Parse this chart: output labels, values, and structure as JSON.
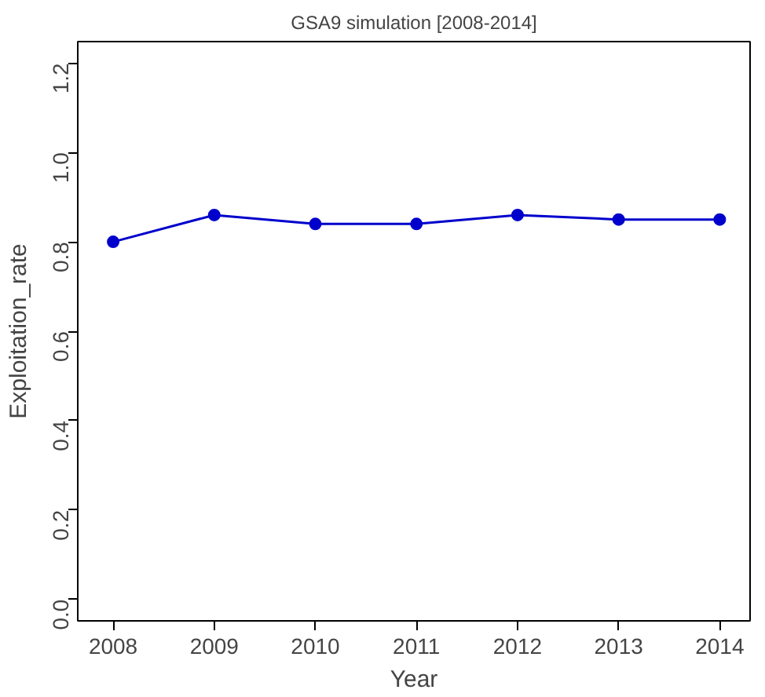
{
  "chart_data": {
    "type": "line",
    "title": "GSA9 simulation [2008-2014]",
    "xlabel": "Year",
    "ylabel": "Exploitation_rate",
    "x": [
      2008,
      2009,
      2010,
      2011,
      2012,
      2013,
      2014
    ],
    "series": [
      {
        "color": "#0000cc",
        "values": [
          0.8,
          0.86,
          0.84,
          0.84,
          0.86,
          0.85,
          0.85
        ]
      }
    ],
    "xlim": [
      2007.65,
      2014.3
    ],
    "ylim": [
      -0.048,
      1.248
    ],
    "xticks": [
      2008,
      2009,
      2010,
      2011,
      2012,
      2013,
      2014
    ],
    "yticks": [
      {
        "value": 0,
        "label": "0.0"
      },
      {
        "value": 0.2,
        "label": "0.2"
      },
      {
        "value": 0.4,
        "label": "0.4"
      },
      {
        "value": 0.6,
        "label": "0.6"
      },
      {
        "value": 0.8,
        "label": "0.8"
      },
      {
        "value": 1,
        "label": "1.0"
      },
      {
        "value": 1.2,
        "label": "1.2"
      }
    ],
    "grid": false,
    "marker": "circle",
    "line_style": "solid"
  }
}
